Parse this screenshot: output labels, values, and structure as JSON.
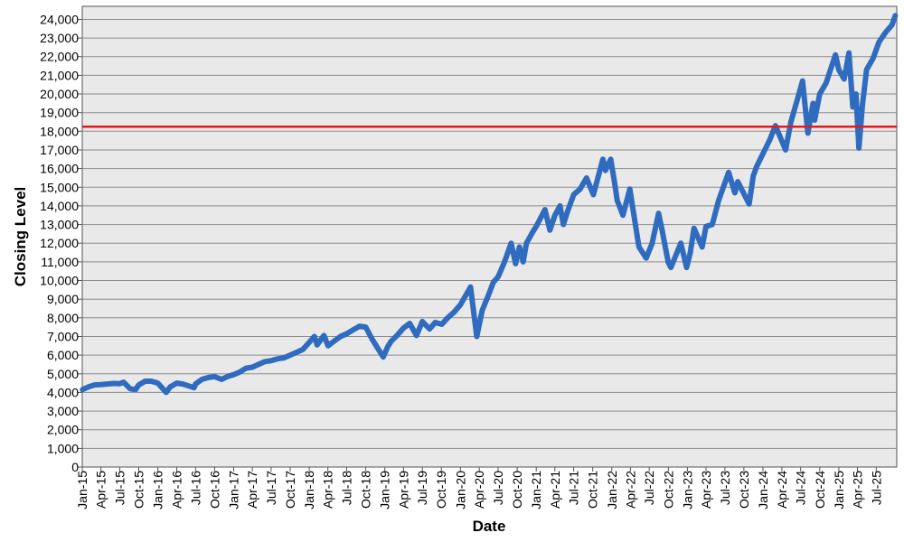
{
  "chart_data": {
    "type": "line",
    "title": "",
    "xlabel": "Date",
    "ylabel": "Closing Level",
    "ylim": [
      0,
      24700
    ],
    "xlim": [
      "2015-01-01",
      "2025-10-08"
    ],
    "grid": true,
    "y_ticks": [
      0,
      1000,
      2000,
      3000,
      4000,
      5000,
      6000,
      7000,
      8000,
      9000,
      10000,
      11000,
      12000,
      13000,
      14000,
      15000,
      16000,
      17000,
      18000,
      19000,
      20000,
      21000,
      22000,
      23000,
      24000
    ],
    "y_tick_labels": [
      "0",
      "1,000",
      "2,000",
      "3,000",
      "4,000",
      "5,000",
      "6,000",
      "7,000",
      "8,000",
      "9,000",
      "10,000",
      "11,000",
      "12,000",
      "13,000",
      "14,000",
      "15,000",
      "16,000",
      "17,000",
      "18,000",
      "19,000",
      "20,000",
      "21,000",
      "22,000",
      "23,000",
      "24,000"
    ],
    "x_ticks": [
      "2015-01-01",
      "2015-04-01",
      "2015-07-01",
      "2015-10-01",
      "2016-01-01",
      "2016-04-01",
      "2016-07-01",
      "2016-10-01",
      "2017-01-01",
      "2017-04-01",
      "2017-07-01",
      "2017-10-01",
      "2018-01-01",
      "2018-04-01",
      "2018-07-01",
      "2018-10-01",
      "2019-01-01",
      "2019-04-01",
      "2019-07-01",
      "2019-10-01",
      "2020-01-01",
      "2020-04-01",
      "2020-07-01",
      "2020-10-01",
      "2021-01-01",
      "2021-04-01",
      "2021-07-01",
      "2021-10-01",
      "2022-01-01",
      "2022-04-01",
      "2022-07-01",
      "2022-10-01",
      "2023-01-01",
      "2023-04-01",
      "2023-07-01",
      "2023-10-01",
      "2024-01-01",
      "2024-04-01",
      "2024-07-01",
      "2024-10-01",
      "2025-01-01",
      "2025-04-01",
      "2025-07-01"
    ],
    "x_tick_labels": [
      "Jan-15",
      "Apr-15",
      "Jul-15",
      "Oct-15",
      "Jan-16",
      "Apr-16",
      "Jul-16",
      "Oct-16",
      "Jan-17",
      "Apr-17",
      "Jul-17",
      "Oct-17",
      "Jan-18",
      "Apr-18",
      "Jul-18",
      "Oct-18",
      "Jan-19",
      "Apr-19",
      "Jul-19",
      "Oct-19",
      "Jan-20",
      "Apr-20",
      "Jul-20",
      "Oct-20",
      "Jan-21",
      "Apr-21",
      "Jul-21",
      "Oct-21",
      "Jan-22",
      "Apr-22",
      "Jul-22",
      "Oct-22",
      "Jan-23",
      "Apr-23",
      "Jul-23",
      "Oct-23",
      "Jan-24",
      "Apr-24",
      "Jul-24",
      "Oct-24",
      "Jan-25",
      "Apr-25",
      "Jul-25"
    ],
    "reference_line": {
      "y": 18250,
      "color": "#e41a1c"
    },
    "series": [
      {
        "color": "#2f6bbf",
        "points": [
          [
            "2015-01-02",
            4150
          ],
          [
            "2015-02-01",
            4300
          ],
          [
            "2015-03-01",
            4400
          ],
          [
            "2015-04-01",
            4420
          ],
          [
            "2015-05-01",
            4450
          ],
          [
            "2015-06-01",
            4480
          ],
          [
            "2015-07-01",
            4470
          ],
          [
            "2015-07-20",
            4550
          ],
          [
            "2015-08-20",
            4200
          ],
          [
            "2015-09-15",
            4150
          ],
          [
            "2015-10-01",
            4400
          ],
          [
            "2015-11-01",
            4600
          ],
          [
            "2015-12-01",
            4600
          ],
          [
            "2016-01-01",
            4500
          ],
          [
            "2016-02-10",
            4000
          ],
          [
            "2016-03-01",
            4300
          ],
          [
            "2016-04-01",
            4500
          ],
          [
            "2016-05-01",
            4450
          ],
          [
            "2016-06-24",
            4250
          ],
          [
            "2016-07-01",
            4450
          ],
          [
            "2016-08-01",
            4700
          ],
          [
            "2016-09-01",
            4800
          ],
          [
            "2016-10-01",
            4850
          ],
          [
            "2016-11-04",
            4700
          ],
          [
            "2016-12-01",
            4850
          ],
          [
            "2017-01-01",
            4950
          ],
          [
            "2017-02-01",
            5100
          ],
          [
            "2017-03-01",
            5300
          ],
          [
            "2017-04-01",
            5350
          ],
          [
            "2017-05-01",
            5500
          ],
          [
            "2017-06-01",
            5650
          ],
          [
            "2017-07-01",
            5700
          ],
          [
            "2017-08-01",
            5800
          ],
          [
            "2017-09-01",
            5850
          ],
          [
            "2017-10-01",
            6000
          ],
          [
            "2017-11-01",
            6150
          ],
          [
            "2017-12-01",
            6300
          ],
          [
            "2018-01-26",
            7000
          ],
          [
            "2018-02-08",
            6550
          ],
          [
            "2018-03-13",
            7050
          ],
          [
            "2018-04-02",
            6500
          ],
          [
            "2018-05-01",
            6750
          ],
          [
            "2018-06-01",
            7000
          ],
          [
            "2018-07-01",
            7150
          ],
          [
            "2018-08-01",
            7350
          ],
          [
            "2018-09-01",
            7550
          ],
          [
            "2018-10-01",
            7500
          ],
          [
            "2018-11-01",
            6850
          ],
          [
            "2018-12-24",
            5900
          ],
          [
            "2019-01-15",
            6450
          ],
          [
            "2019-02-01",
            6750
          ],
          [
            "2019-03-01",
            7050
          ],
          [
            "2019-04-01",
            7450
          ],
          [
            "2019-05-01",
            7700
          ],
          [
            "2019-06-03",
            7050
          ],
          [
            "2019-07-01",
            7800
          ],
          [
            "2019-08-05",
            7400
          ],
          [
            "2019-09-01",
            7750
          ],
          [
            "2019-10-03",
            7650
          ],
          [
            "2019-11-01",
            8000
          ],
          [
            "2019-12-01",
            8300
          ],
          [
            "2020-01-01",
            8700
          ],
          [
            "2020-02-19",
            9650
          ],
          [
            "2020-03-20",
            7000
          ],
          [
            "2020-04-15",
            8400
          ],
          [
            "2020-05-15",
            9200
          ],
          [
            "2020-06-08",
            9900
          ],
          [
            "2020-07-01",
            10200
          ],
          [
            "2020-08-01",
            11000
          ],
          [
            "2020-09-02",
            12000
          ],
          [
            "2020-09-23",
            10900
          ],
          [
            "2020-10-12",
            11800
          ],
          [
            "2020-10-30",
            11000
          ],
          [
            "2020-11-15",
            12000
          ],
          [
            "2020-12-15",
            12600
          ],
          [
            "2021-01-01",
            12900
          ],
          [
            "2021-02-12",
            13800
          ],
          [
            "2021-03-08",
            12700
          ],
          [
            "2021-04-01",
            13500
          ],
          [
            "2021-04-26",
            14000
          ],
          [
            "2021-05-12",
            13000
          ],
          [
            "2021-06-01",
            13700
          ],
          [
            "2021-07-01",
            14600
          ],
          [
            "2021-08-01",
            14900
          ],
          [
            "2021-09-01",
            15500
          ],
          [
            "2021-10-04",
            14600
          ],
          [
            "2021-11-19",
            16500
          ],
          [
            "2021-12-01",
            15900
          ],
          [
            "2021-12-27",
            16500
          ],
          [
            "2022-01-15",
            15200
          ],
          [
            "2022-01-27",
            14300
          ],
          [
            "2022-02-24",
            13500
          ],
          [
            "2022-03-29",
            14900
          ],
          [
            "2022-04-15",
            13700
          ],
          [
            "2022-05-12",
            11800
          ],
          [
            "2022-06-16",
            11200
          ],
          [
            "2022-07-15",
            12000
          ],
          [
            "2022-08-15",
            13600
          ],
          [
            "2022-09-01",
            12700
          ],
          [
            "2022-09-30",
            11000
          ],
          [
            "2022-10-13",
            10700
          ],
          [
            "2022-11-30",
            12000
          ],
          [
            "2022-12-28",
            10700
          ],
          [
            "2023-01-15",
            11500
          ],
          [
            "2023-02-02",
            12800
          ],
          [
            "2023-03-13",
            11800
          ],
          [
            "2023-04-01",
            12900
          ],
          [
            "2023-05-01",
            13000
          ],
          [
            "2023-06-01",
            14300
          ],
          [
            "2023-07-19",
            15800
          ],
          [
            "2023-08-18",
            14700
          ],
          [
            "2023-09-01",
            15300
          ],
          [
            "2023-10-26",
            14100
          ],
          [
            "2023-11-15",
            15600
          ],
          [
            "2023-12-01",
            16100
          ],
          [
            "2024-01-01",
            16800
          ],
          [
            "2024-02-01",
            17500
          ],
          [
            "2024-03-01",
            18300
          ],
          [
            "2024-04-19",
            17000
          ],
          [
            "2024-05-15",
            18500
          ],
          [
            "2024-06-15",
            19700
          ],
          [
            "2024-07-10",
            20700
          ],
          [
            "2024-08-05",
            17900
          ],
          [
            "2024-08-30",
            19500
          ],
          [
            "2024-09-06",
            18600
          ],
          [
            "2024-10-01",
            20000
          ],
          [
            "2024-11-01",
            20600
          ],
          [
            "2024-12-16",
            22100
          ],
          [
            "2025-01-01",
            21300
          ],
          [
            "2025-01-27",
            20800
          ],
          [
            "2025-02-19",
            22200
          ],
          [
            "2025-03-10",
            19300
          ],
          [
            "2025-03-25",
            20000
          ],
          [
            "2025-04-08",
            17100
          ],
          [
            "2025-04-25",
            19400
          ],
          [
            "2025-05-15",
            21300
          ],
          [
            "2025-06-15",
            21900
          ],
          [
            "2025-07-15",
            22800
          ],
          [
            "2025-08-15",
            23300
          ],
          [
            "2025-09-15",
            23700
          ],
          [
            "2025-10-01",
            24200
          ]
        ]
      }
    ]
  }
}
